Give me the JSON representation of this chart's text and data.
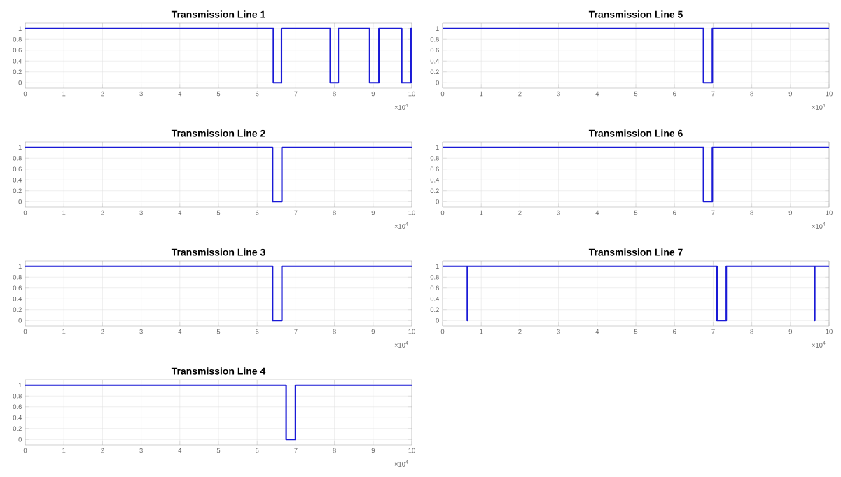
{
  "chart_data": [
    {
      "type": "line",
      "title": "Transmission Line 1",
      "x": [
        0,
        6.42,
        6.42,
        6.63,
        6.63,
        7.89,
        7.89,
        8.1,
        8.1,
        8.91,
        8.91,
        9.15,
        9.15,
        9.74,
        9.74,
        9.98,
        9.98,
        10
      ],
      "values": [
        1,
        1,
        0,
        0,
        1,
        1,
        0,
        0,
        1,
        1,
        0,
        0,
        1,
        1,
        0,
        0,
        1,
        1
      ],
      "color": "#1a1ad6",
      "xlim": [
        0,
        10
      ],
      "ylim": [
        -0.1,
        1.1
      ],
      "xticks": [
        0,
        1,
        2,
        3,
        4,
        5,
        6,
        7,
        8,
        9,
        10
      ],
      "yticks": [
        0,
        0.2,
        0.4,
        0.6,
        0.8,
        1
      ],
      "grid": true,
      "annotations": [
        "×10$^{4}$"
      ]
    },
    {
      "type": "line",
      "title": "Transmission Line 2",
      "x": [
        0,
        6.4,
        6.4,
        6.64,
        6.64,
        10
      ],
      "values": [
        1,
        1,
        0,
        0,
        1,
        1
      ],
      "color": "#1a1ad6",
      "xlim": [
        0,
        10
      ],
      "ylim": [
        -0.1,
        1.1
      ],
      "xticks": [
        0,
        1,
        2,
        3,
        4,
        5,
        6,
        7,
        8,
        9,
        10
      ],
      "yticks": [
        0,
        0.2,
        0.4,
        0.6,
        0.8,
        1
      ],
      "grid": true,
      "annotations": [
        "×10$^{4}$"
      ]
    },
    {
      "type": "line",
      "title": "Transmission Line 3",
      "x": [
        0,
        6.4,
        6.4,
        6.64,
        6.64,
        10
      ],
      "values": [
        1,
        1,
        0,
        0,
        1,
        1
      ],
      "color": "#1a1ad6",
      "xlim": [
        0,
        10
      ],
      "ylim": [
        -0.1,
        1.1
      ],
      "xticks": [
        0,
        1,
        2,
        3,
        4,
        5,
        6,
        7,
        8,
        9,
        10
      ],
      "yticks": [
        0,
        0.2,
        0.4,
        0.6,
        0.8,
        1
      ],
      "grid": true,
      "annotations": [
        "×10$^{4}$"
      ]
    },
    {
      "type": "line",
      "title": "Transmission Line 4",
      "x": [
        0,
        6.75,
        6.75,
        6.99,
        6.99,
        10
      ],
      "values": [
        1,
        1,
        0,
        0,
        1,
        1
      ],
      "color": "#1a1ad6",
      "xlim": [
        0,
        10
      ],
      "ylim": [
        -0.1,
        1.1
      ],
      "xticks": [
        0,
        1,
        2,
        3,
        4,
        5,
        6,
        7,
        8,
        9,
        10
      ],
      "yticks": [
        0,
        0.2,
        0.4,
        0.6,
        0.8,
        1
      ],
      "grid": true,
      "annotations": [
        "×10$^{4}$"
      ]
    },
    {
      "type": "line",
      "title": "Transmission Line 5",
      "x": [
        0,
        6.75,
        6.75,
        6.98,
        6.98,
        10
      ],
      "values": [
        1,
        1,
        0,
        0,
        1,
        1
      ],
      "color": "#1a1ad6",
      "xlim": [
        0,
        10
      ],
      "ylim": [
        -0.1,
        1.1
      ],
      "xticks": [
        0,
        1,
        2,
        3,
        4,
        5,
        6,
        7,
        8,
        9,
        10
      ],
      "yticks": [
        0,
        0.2,
        0.4,
        0.6,
        0.8,
        1
      ],
      "grid": true,
      "annotations": [
        "×10$^{4}$"
      ]
    },
    {
      "type": "line",
      "title": "Transmission Line 6",
      "x": [
        0,
        6.75,
        6.75,
        6.98,
        6.98,
        10
      ],
      "values": [
        1,
        1,
        0,
        0,
        1,
        1
      ],
      "color": "#1a1ad6",
      "xlim": [
        0,
        10
      ],
      "ylim": [
        -0.1,
        1.1
      ],
      "xticks": [
        0,
        1,
        2,
        3,
        4,
        5,
        6,
        7,
        8,
        9,
        10
      ],
      "yticks": [
        0,
        0.2,
        0.4,
        0.6,
        0.8,
        1
      ],
      "grid": true,
      "annotations": [
        "×10$^{4}$"
      ]
    },
    {
      "type": "line",
      "title": "Transmission Line 7",
      "x": [
        0,
        0.64,
        0.64,
        0.64,
        7.1,
        7.1,
        7.34,
        7.34,
        9.63,
        9.63,
        9.63,
        10
      ],
      "values": [
        1,
        1,
        0,
        1,
        1,
        0,
        0,
        1,
        1,
        0,
        1,
        1
      ],
      "color": "#1a1ad6",
      "xlim": [
        0,
        10
      ],
      "ylim": [
        -0.1,
        1.1
      ],
      "xticks": [
        0,
        1,
        2,
        3,
        4,
        5,
        6,
        7,
        8,
        9,
        10
      ],
      "yticks": [
        0,
        0.2,
        0.4,
        0.6,
        0.8,
        1
      ],
      "grid": true,
      "annotations": [
        "×10$^{4}$"
      ]
    }
  ]
}
